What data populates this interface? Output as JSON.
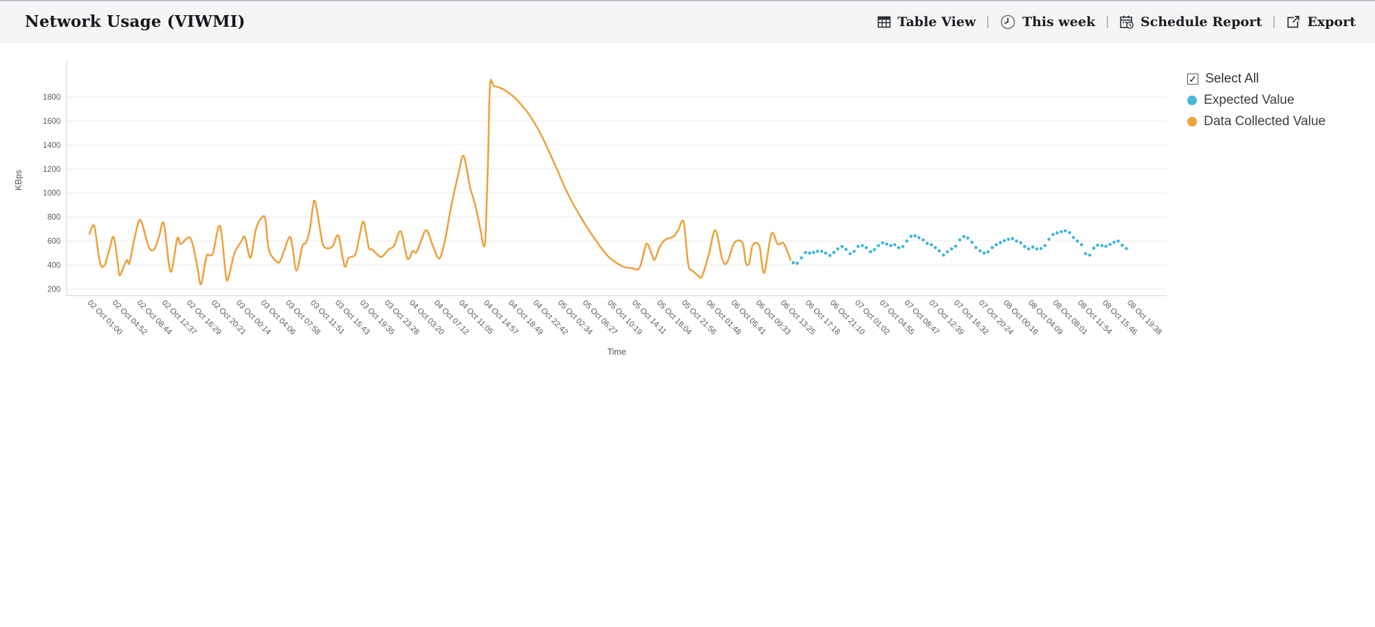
{
  "header": {
    "title": "Network Usage (VIWMI)",
    "separator": "|",
    "actions": [
      {
        "label": "Table View",
        "icon": "table-icon"
      },
      {
        "label": "This week",
        "icon": "clock-icon"
      },
      {
        "label": "Schedule Report",
        "icon": "calendar-clock-icon"
      },
      {
        "label": "Export",
        "icon": "export-icon"
      }
    ]
  },
  "legend": {
    "select_all_label": "Select All",
    "select_all_checked": true,
    "check_glyph": "✓",
    "items": [
      {
        "label": "Expected Value",
        "color": "#49b8dc"
      },
      {
        "label": "Data Collected Value",
        "color": "#f0a23f"
      }
    ]
  },
  "chart_data": {
    "type": "line",
    "title": "Network Usage (VIWMI)",
    "xlabel": "Time",
    "ylabel": "KBps",
    "grid": true,
    "legend_position": "right",
    "ylim": [
      140,
      2100
    ],
    "yticks": [
      200,
      400,
      600,
      800,
      1000,
      1200,
      1400,
      1600,
      1800
    ],
    "categories": [
      "02 Oct 01:00",
      "02 Oct 04:52",
      "02 Oct 08:44",
      "02 Oct 12:37",
      "02 Oct 16:29",
      "02 Oct 20:21",
      "03 Oct 00:14",
      "03 Oct 04:06",
      "03 Oct 07:58",
      "03 Oct 11:51",
      "03 Oct 15:43",
      "03 Oct 19:35",
      "03 Oct 23:28",
      "04 Oct 03:20",
      "04 Oct 07:12",
      "04 Oct 11:05",
      "04 Oct 14:57",
      "04 Oct 18:49",
      "04 Oct 22:42",
      "05 Oct 02:34",
      "05 Oct 06:27",
      "05 Oct 10:19",
      "05 Oct 14:11",
      "05 Oct 18:04",
      "05 Oct 21:56",
      "06 Oct 01:48",
      "06 Oct 05:41",
      "06 Oct 09:33",
      "06 Oct 13:25",
      "06 Oct 17:18",
      "06 Oct 21:10",
      "07 Oct 01:02",
      "07 Oct 04:55",
      "07 Oct 08:47",
      "07 Oct 12:39",
      "07 Oct 16:32",
      "07 Oct 20:24",
      "08 Oct 00:16",
      "08 Oct 04:09",
      "08 Oct 08:01",
      "08 Oct 11:54",
      "08 Oct 15:46",
      "08 Oct 19:38"
    ],
    "series": [
      {
        "name": "Data Collected Value",
        "color": "#eda13d",
        "style": "solid",
        "points": [
          [
            0.0,
            660
          ],
          [
            0.19,
            730
          ],
          [
            0.33,
            545
          ],
          [
            0.46,
            400
          ],
          [
            0.63,
            405
          ],
          [
            0.82,
            540
          ],
          [
            0.98,
            632
          ],
          [
            1.15,
            415
          ],
          [
            1.23,
            315
          ],
          [
            1.5,
            440
          ],
          [
            1.61,
            415
          ],
          [
            1.8,
            600
          ],
          [
            2.0,
            765
          ],
          [
            2.13,
            745
          ],
          [
            2.41,
            545
          ],
          [
            2.63,
            535
          ],
          [
            2.82,
            640
          ],
          [
            3.01,
            745
          ],
          [
            3.28,
            345
          ],
          [
            3.55,
            620
          ],
          [
            3.69,
            575
          ],
          [
            4.02,
            632
          ],
          [
            4.18,
            565
          ],
          [
            4.37,
            380
          ],
          [
            4.51,
            240
          ],
          [
            4.73,
            470
          ],
          [
            4.87,
            480
          ],
          [
            5.0,
            505
          ],
          [
            5.28,
            725
          ],
          [
            5.52,
            308
          ],
          [
            5.63,
            305
          ],
          [
            5.82,
            470
          ],
          [
            5.93,
            530
          ],
          [
            6.15,
            600
          ],
          [
            6.29,
            632
          ],
          [
            6.51,
            460
          ],
          [
            6.73,
            700
          ],
          [
            6.97,
            795
          ],
          [
            7.11,
            780
          ],
          [
            7.25,
            530
          ],
          [
            7.52,
            440
          ],
          [
            7.71,
            435
          ],
          [
            8.07,
            630
          ],
          [
            8.2,
            560
          ],
          [
            8.37,
            355
          ],
          [
            8.61,
            560
          ],
          [
            8.75,
            585
          ],
          [
            8.91,
            700
          ],
          [
            9.08,
            935
          ],
          [
            9.24,
            800
          ],
          [
            9.43,
            575
          ],
          [
            9.65,
            540
          ],
          [
            9.84,
            560
          ],
          [
            10.06,
            645
          ],
          [
            10.31,
            392
          ],
          [
            10.47,
            460
          ],
          [
            10.75,
            490
          ],
          [
            10.91,
            640
          ],
          [
            11.08,
            760
          ],
          [
            11.29,
            547
          ],
          [
            11.43,
            530
          ],
          [
            11.68,
            478
          ],
          [
            11.84,
            472
          ],
          [
            12.09,
            530
          ],
          [
            12.31,
            560
          ],
          [
            12.58,
            680
          ],
          [
            12.85,
            455
          ],
          [
            13.07,
            518
          ],
          [
            13.21,
            505
          ],
          [
            13.4,
            600
          ],
          [
            13.62,
            690
          ],
          [
            13.89,
            555
          ],
          [
            14.14,
            455
          ],
          [
            14.36,
            600
          ],
          [
            14.63,
            900
          ],
          [
            14.9,
            1150
          ],
          [
            15.12,
            1310
          ],
          [
            15.37,
            1060
          ],
          [
            15.59,
            900
          ],
          [
            15.78,
            715
          ],
          [
            15.94,
            556
          ],
          [
            16.02,
            700
          ],
          [
            16.11,
            1300
          ],
          [
            16.19,
            1900
          ],
          [
            16.35,
            1890
          ],
          [
            16.68,
            1868
          ],
          [
            17.15,
            1800
          ],
          [
            17.69,
            1675
          ],
          [
            18.24,
            1490
          ],
          [
            18.79,
            1245
          ],
          [
            19.33,
            995
          ],
          [
            19.88,
            790
          ],
          [
            20.43,
            615
          ],
          [
            20.97,
            470
          ],
          [
            21.52,
            392
          ],
          [
            21.88,
            376
          ],
          [
            22.23,
            378
          ],
          [
            22.5,
            575
          ],
          [
            22.7,
            500
          ],
          [
            22.83,
            443
          ],
          [
            23.02,
            540
          ],
          [
            23.16,
            590
          ],
          [
            23.32,
            617
          ],
          [
            23.6,
            638
          ],
          [
            23.79,
            690
          ],
          [
            24.01,
            758
          ],
          [
            24.2,
            403
          ],
          [
            24.39,
            350
          ],
          [
            24.61,
            310
          ],
          [
            24.75,
            306
          ],
          [
            25.02,
            480
          ],
          [
            25.29,
            690
          ],
          [
            25.57,
            450
          ],
          [
            25.76,
            420
          ],
          [
            26.06,
            585
          ],
          [
            26.39,
            585
          ],
          [
            26.52,
            420
          ],
          [
            26.66,
            415
          ],
          [
            26.8,
            565
          ],
          [
            27.07,
            560
          ],
          [
            27.26,
            335
          ],
          [
            27.56,
            660
          ],
          [
            27.81,
            575
          ],
          [
            28.03,
            585
          ],
          [
            28.19,
            520
          ],
          [
            28.33,
            443
          ]
        ]
      },
      {
        "name": "Expected Value",
        "color": "#3ab6d8",
        "style": "dotted",
        "points": [
          [
            28.44,
            420
          ],
          [
            28.6,
            415
          ],
          [
            28.77,
            460
          ],
          [
            28.93,
            505
          ],
          [
            29.1,
            500
          ],
          [
            29.26,
            505
          ],
          [
            29.42,
            515
          ],
          [
            29.59,
            515
          ],
          [
            29.75,
            500
          ],
          [
            29.92,
            480
          ],
          [
            30.08,
            505
          ],
          [
            30.24,
            535
          ],
          [
            30.41,
            555
          ],
          [
            30.57,
            530
          ],
          [
            30.74,
            495
          ],
          [
            30.9,
            515
          ],
          [
            31.06,
            555
          ],
          [
            31.23,
            562
          ],
          [
            31.39,
            545
          ],
          [
            31.56,
            510
          ],
          [
            31.72,
            528
          ],
          [
            31.88,
            562
          ],
          [
            32.05,
            585
          ],
          [
            32.21,
            575
          ],
          [
            32.38,
            562
          ],
          [
            32.54,
            570
          ],
          [
            32.7,
            545
          ],
          [
            32.87,
            555
          ],
          [
            33.03,
            600
          ],
          [
            33.2,
            640
          ],
          [
            33.36,
            643
          ],
          [
            33.52,
            628
          ],
          [
            33.69,
            610
          ],
          [
            33.85,
            580
          ],
          [
            34.02,
            569
          ],
          [
            34.18,
            546
          ],
          [
            34.34,
            518
          ],
          [
            34.51,
            483
          ],
          [
            34.67,
            510
          ],
          [
            34.84,
            535
          ],
          [
            35.0,
            558
          ],
          [
            35.17,
            610
          ],
          [
            35.33,
            638
          ],
          [
            35.49,
            625
          ],
          [
            35.66,
            590
          ],
          [
            35.82,
            546
          ],
          [
            35.99,
            518
          ],
          [
            36.15,
            500
          ],
          [
            36.31,
            510
          ],
          [
            36.48,
            546
          ],
          [
            36.64,
            570
          ],
          [
            36.81,
            586
          ],
          [
            36.97,
            603
          ],
          [
            37.13,
            615
          ],
          [
            37.3,
            620
          ],
          [
            37.46,
            600
          ],
          [
            37.63,
            585
          ],
          [
            37.79,
            555
          ],
          [
            37.95,
            535
          ],
          [
            38.12,
            550
          ],
          [
            38.28,
            535
          ],
          [
            38.45,
            538
          ],
          [
            38.61,
            562
          ],
          [
            38.77,
            615
          ],
          [
            38.94,
            655
          ],
          [
            39.1,
            668
          ],
          [
            39.27,
            678
          ],
          [
            39.43,
            685
          ],
          [
            39.6,
            670
          ],
          [
            39.76,
            630
          ],
          [
            39.92,
            600
          ],
          [
            40.09,
            570
          ],
          [
            40.25,
            495
          ],
          [
            40.42,
            483
          ],
          [
            40.58,
            540
          ],
          [
            40.74,
            565
          ],
          [
            40.91,
            562
          ],
          [
            41.07,
            556
          ],
          [
            41.24,
            572
          ],
          [
            41.4,
            590
          ],
          [
            41.57,
            600
          ],
          [
            41.73,
            565
          ],
          [
            41.9,
            538
          ]
        ]
      }
    ],
    "axis_color": "#cfcfcf",
    "grid_color": "#e9e9e9",
    "label_color": "#595959"
  }
}
